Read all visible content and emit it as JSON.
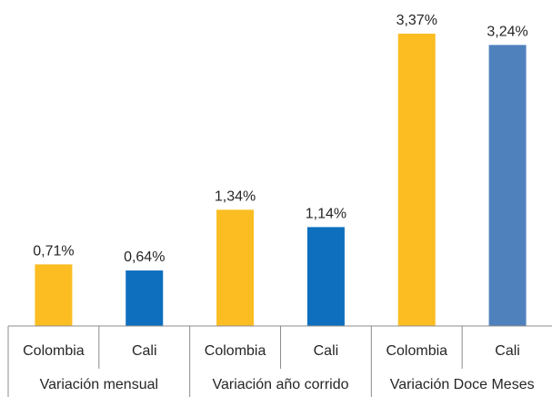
{
  "chart_data": {
    "type": "bar",
    "groups": [
      {
        "label": "Variación mensual",
        "bars": [
          {
            "category": "Colombia",
            "value": 0.71,
            "value_label": "0,71%",
            "color": "#FBBD22"
          },
          {
            "category": "Cali",
            "value": 0.64,
            "value_label": "0,64%",
            "color": "#0E6FBE"
          }
        ]
      },
      {
        "label": "Variación año corrido",
        "bars": [
          {
            "category": "Colombia",
            "value": 1.34,
            "value_label": "1,34%",
            "color": "#FBBD22"
          },
          {
            "category": "Cali",
            "value": 1.14,
            "value_label": "1,14%",
            "color": "#0E6FBE"
          }
        ]
      },
      {
        "label": "Variación Doce Meses",
        "bars": [
          {
            "category": "Colombia",
            "value": 3.37,
            "value_label": "3,37%",
            "color": "#FBBD22"
          },
          {
            "category": "Cali",
            "value": 3.24,
            "value_label": "3,24%",
            "color": "#4F81BD"
          }
        ]
      }
    ],
    "unit": "%",
    "ylim": [
      0,
      3.37
    ],
    "grid": false,
    "legend": "none"
  }
}
